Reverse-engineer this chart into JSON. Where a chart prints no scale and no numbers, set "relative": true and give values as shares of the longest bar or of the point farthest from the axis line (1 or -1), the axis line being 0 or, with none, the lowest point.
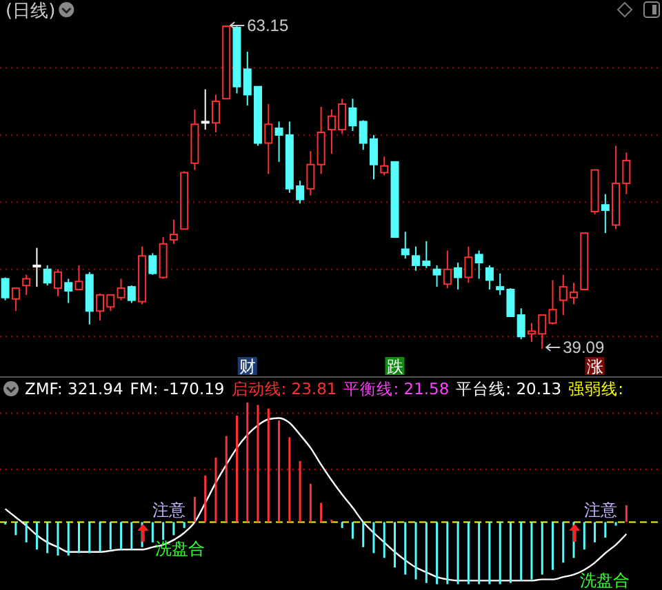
{
  "chart_data": [
    {
      "type": "candlestick",
      "title": "(日线)",
      "categories": [
        null,
        null,
        null,
        null,
        null,
        null,
        null,
        null,
        null,
        null,
        null,
        null,
        null,
        null,
        null,
        null,
        null,
        null,
        null,
        null,
        null,
        null,
        null,
        null,
        null,
        null,
        null,
        null,
        null,
        null,
        null,
        null,
        null,
        null,
        null,
        null,
        null,
        null,
        null,
        null,
        null,
        null,
        null,
        null,
        null,
        null,
        null,
        null,
        null,
        null,
        null,
        null,
        null,
        null,
        null,
        null,
        null,
        null,
        null,
        null
      ],
      "ohlc": [
        [
          44.3,
          44.4,
          42.7,
          42.9
        ],
        [
          42.8,
          43.6,
          41.9,
          43.6
        ],
        [
          43.8,
          44.6,
          43.1,
          44.3
        ],
        [
          45.3,
          46.6,
          43.7,
          45.3
        ],
        [
          45.0,
          45.3,
          43.8,
          44.0
        ],
        [
          43.6,
          45.0,
          43.0,
          44.8
        ],
        [
          44.0,
          44.3,
          42.5,
          43.4
        ],
        [
          43.5,
          45.3,
          43.5,
          44.1
        ],
        [
          44.6,
          44.8,
          40.9,
          41.9
        ],
        [
          41.9,
          43.2,
          41.2,
          43.1
        ],
        [
          42.2,
          43.1,
          41.9,
          43.1
        ],
        [
          42.9,
          44.3,
          42.7,
          43.6
        ],
        [
          43.7,
          43.8,
          42.5,
          42.7
        ],
        [
          42.6,
          46.7,
          42.4,
          46.0
        ],
        [
          46.0,
          46.2,
          44.6,
          44.7
        ],
        [
          44.4,
          47.4,
          44.3,
          46.9
        ],
        [
          47.2,
          48.7,
          46.9,
          47.6
        ],
        [
          48.0,
          52.3,
          48.0,
          52.2
        ],
        [
          52.9,
          56.9,
          52.4,
          55.8
        ],
        [
          56.0,
          58.4,
          55.4,
          56.0
        ],
        [
          55.9,
          58.0,
          55.2,
          57.5
        ],
        [
          57.7,
          63.15,
          57.7,
          63.1
        ],
        [
          63.0,
          63.1,
          58.1,
          58.6
        ],
        [
          59.9,
          61.2,
          57.2,
          58.0
        ],
        [
          58.6,
          58.6,
          54.2,
          54.4
        ],
        [
          54.4,
          57.3,
          52.1,
          55.8
        ],
        [
          55.5,
          56.0,
          53.0,
          55.0
        ],
        [
          55.0,
          56.0,
          50.7,
          51.0
        ],
        [
          51.2,
          51.6,
          49.9,
          50.2
        ],
        [
          51.0,
          53.8,
          50.5,
          52.8
        ],
        [
          52.8,
          57.1,
          52.1,
          55.2
        ],
        [
          55.4,
          56.9,
          53.6,
          56.4
        ],
        [
          55.4,
          57.7,
          55.1,
          57.3
        ],
        [
          57.0,
          57.7,
          55.3,
          55.7
        ],
        [
          56.0,
          56.1,
          53.9,
          54.4
        ],
        [
          54.7,
          55.0,
          51.7,
          52.8
        ],
        [
          52.2,
          53.4,
          52.0,
          52.7
        ],
        [
          53.0,
          53.0,
          47.4,
          47.4
        ],
        [
          46.5,
          47.8,
          45.8,
          46.1
        ],
        [
          46.0,
          46.7,
          44.9,
          45.3
        ],
        [
          45.6,
          47.1,
          45.1,
          45.3
        ],
        [
          45.0,
          45.3,
          43.7,
          44.6
        ],
        [
          43.9,
          46.4,
          43.6,
          45.0
        ],
        [
          45.1,
          45.5,
          43.5,
          44.4
        ],
        [
          44.4,
          46.7,
          44.0,
          45.9
        ],
        [
          46.1,
          46.4,
          44.3,
          45.5
        ],
        [
          45.1,
          45.3,
          43.5,
          44.2
        ],
        [
          43.7,
          44.7,
          43.1,
          43.5
        ],
        [
          43.5,
          43.6,
          41.5,
          41.5
        ],
        [
          41.6,
          42.1,
          39.8,
          40.0
        ],
        [
          40.2,
          41.0,
          39.6,
          40.4
        ],
        [
          40.2,
          41.6,
          39.09,
          41.6
        ],
        [
          41.0,
          44.2,
          40.9,
          42.0
        ],
        [
          42.7,
          44.6,
          41.6,
          43.7
        ],
        [
          42.9,
          44.0,
          42.4,
          43.3
        ],
        [
          43.5,
          47.7,
          43.5,
          47.7
        ],
        [
          49.3,
          52.4,
          49.1,
          52.4
        ],
        [
          49.8,
          50.6,
          47.7,
          49.4
        ],
        [
          48.3,
          54.2,
          48.0,
          51.4
        ],
        [
          51.4,
          53.7,
          50.6,
          53.1
        ]
      ],
      "colors": [
        "#54fcfc",
        "#ff3232",
        "#ff3232",
        "#ffffff",
        "#54fcfc",
        "#ff3232",
        "#54fcfc",
        "#ff3232",
        "#54fcfc",
        "#ff3232",
        "#ff3232",
        "#ff3232",
        "#54fcfc",
        "#ff3232",
        "#54fcfc",
        "#ff3232",
        "#ff3232",
        "#ff3232",
        "#ff3232",
        "#ffffff",
        "#ff3232",
        "#ff3232",
        "#54fcfc",
        "#54fcfc",
        "#54fcfc",
        "#ff3232",
        "#54fcfc",
        "#54fcfc",
        "#54fcfc",
        "#ff3232",
        "#ff3232",
        "#ff3232",
        "#ff3232",
        "#54fcfc",
        "#54fcfc",
        "#54fcfc",
        "#ff3232",
        "#54fcfc",
        "#54fcfc",
        "#54fcfc",
        "#54fcfc",
        "#54fcfc",
        "#ff3232",
        "#54fcfc",
        "#ff3232",
        "#54fcfc",
        "#54fcfc",
        "#54fcfc",
        "#54fcfc",
        "#54fcfc",
        "#ff3232",
        "#ff3232",
        "#ff3232",
        "#ff3232",
        "#ff3232",
        "#ff3232",
        "#ff3232",
        "#54fcfc",
        "#ff3232",
        "#ff3232"
      ],
      "yticks": [
        {
          "value": 40,
          "label": null
        },
        {
          "value": 45,
          "label": null
        },
        {
          "value": 50,
          "label": null
        },
        {
          "value": 55,
          "label": null
        },
        {
          "value": 60,
          "label": null
        }
      ],
      "grid": "y",
      "annotations": [
        "63.15",
        "39.09",
        "财",
        "跌",
        "涨"
      ]
    },
    {
      "type": "bar",
      "relative": true,
      "categories": [
        null,
        null,
        null,
        null,
        null,
        null,
        null,
        null,
        null,
        null,
        null,
        null,
        null,
        null,
        null,
        null,
        null,
        null,
        null,
        null,
        null,
        null,
        null,
        null,
        null,
        null,
        null,
        null,
        null,
        null,
        null,
        null,
        null,
        null,
        null,
        null,
        null,
        null,
        null,
        null,
        null,
        null,
        null,
        null,
        null,
        null,
        null,
        null,
        null,
        null,
        null,
        null,
        null,
        null,
        null,
        null,
        null,
        null,
        null,
        null
      ],
      "series": [
        {
          "type": "bar",
          "values": [
            -0.02,
            -0.11,
            -0.17,
            -0.23,
            -0.26,
            -0.28,
            -0.28,
            -0.26,
            -0.26,
            -0.25,
            -0.23,
            -0.23,
            -0.23,
            -0.21,
            -0.17,
            -0.15,
            -0.11,
            -0.05,
            0.21,
            0.39,
            0.54,
            0.72,
            0.89,
            1,
            0.98,
            0.95,
            0.85,
            0.71,
            0.51,
            0.32,
            0.16,
            0.02,
            -0.05,
            -0.14,
            -0.21,
            -0.26,
            -0.3,
            -0.38,
            -0.44,
            -0.48,
            -0.51,
            -0.52,
            -0.52,
            -0.52,
            -0.52,
            -0.52,
            -0.52,
            -0.52,
            -0.51,
            -0.49,
            -0.48,
            -0.44,
            -0.4,
            -0.34,
            -0.3,
            -0.23,
            -0.17,
            -0.13,
            -0.03,
            0.14
          ],
          "colors": [
            "#54fcfc",
            "#54fcfc",
            "#54fcfc",
            "#54fcfc",
            "#54fcfc",
            "#54fcfc",
            "#54fcfc",
            "#54fcfc",
            "#54fcfc",
            "#54fcfc",
            "#54fcfc",
            "#54fcfc",
            "#54fcfc",
            "#54fcfc",
            "#54fcfc",
            "#54fcfc",
            "#54fcfc",
            "#54fcfc",
            "#ff3232",
            "#ff3232",
            "#ff3232",
            "#ff3232",
            "#ff3232",
            "#ff3232",
            "#ff3232",
            "#ff3232",
            "#ff3232",
            "#ff3232",
            "#ff3232",
            "#ff3232",
            "#ff3232",
            "#ff3232",
            "#54fcfc",
            "#54fcfc",
            "#54fcfc",
            "#54fcfc",
            "#54fcfc",
            "#54fcfc",
            "#54fcfc",
            "#54fcfc",
            "#54fcfc",
            "#54fcfc",
            "#54fcfc",
            "#54fcfc",
            "#54fcfc",
            "#54fcfc",
            "#54fcfc",
            "#54fcfc",
            "#54fcfc",
            "#54fcfc",
            "#54fcfc",
            "#54fcfc",
            "#54fcfc",
            "#54fcfc",
            "#54fcfc",
            "#54fcfc",
            "#54fcfc",
            "#54fcfc",
            "#54fcfc",
            "#ff3232"
          ]
        },
        {
          "type": "line",
          "color": "#ffffff",
          "values": [
            0.11,
            0.04,
            -0.03,
            -0.11,
            -0.17,
            -0.21,
            -0.25,
            -0.25,
            -0.25,
            -0.25,
            -0.24,
            -0.23,
            -0.23,
            -0.23,
            -0.21,
            -0.19,
            -0.15,
            -0.09,
            0,
            0.16,
            0.33,
            0.48,
            0.62,
            0.73,
            0.81,
            0.86,
            0.87,
            0.83,
            0.73,
            0.62,
            0.48,
            0.35,
            0.23,
            0.12,
            0,
            -0.09,
            -0.17,
            -0.25,
            -0.32,
            -0.38,
            -0.42,
            -0.46,
            -0.48,
            -0.49,
            -0.49,
            -0.49,
            -0.49,
            -0.49,
            -0.49,
            -0.49,
            -0.49,
            -0.48,
            -0.48,
            -0.46,
            -0.44,
            -0.4,
            -0.34,
            -0.26,
            -0.19,
            -0.1
          ]
        }
      ],
      "ref_lines": [
        {
          "axis": "y",
          "value": 0.91,
          "color": "#c00000",
          "line_style": "dotted"
        },
        {
          "axis": "y",
          "value": 0.44,
          "color": "#c00000",
          "line_style": "dotted"
        },
        {
          "axis": "y",
          "value": 0,
          "color": "#ffff00",
          "line_style": "dashed"
        }
      ],
      "annotations": [
        "ZMF: 321.94",
        "FM: -170.19",
        "启动线: 23.81",
        "平衡线: 21.58",
        "平台线: 20.13",
        "强弱线:",
        "注意",
        "洗盘合",
        "注意",
        "洗盘合"
      ]
    }
  ]
}
